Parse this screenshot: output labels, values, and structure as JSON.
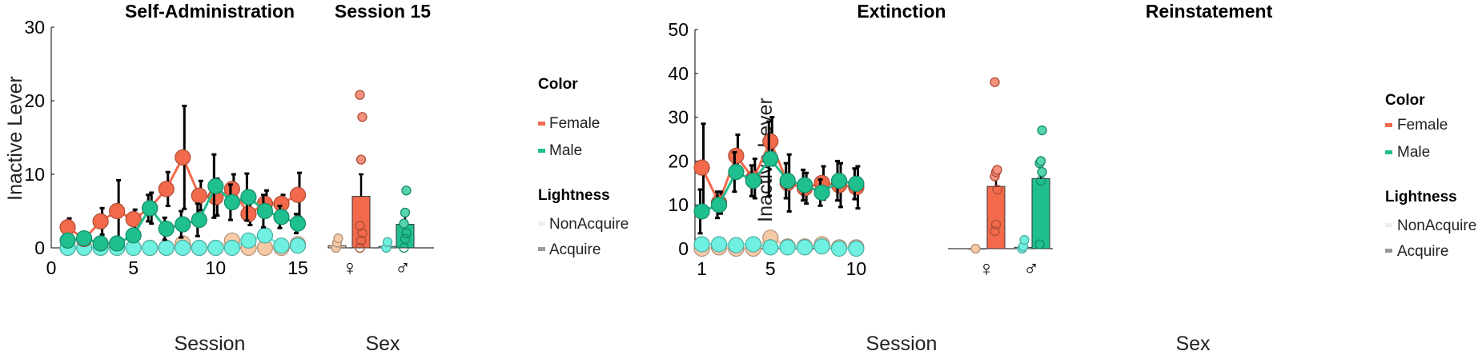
{
  "colors": {
    "female": "#f26a4b",
    "male": "#1fbf8f",
    "female_light": "#f6c9a7",
    "male_light": "#6ff0e0",
    "female_bar": "#f5917d",
    "male_bar": "#57d4b0",
    "axis": "#000000",
    "errorbar": "#000000"
  },
  "legends": [
    {
      "color_title": "Color",
      "color_items": [
        "Female",
        "Male"
      ],
      "lightness_title": "Lightness",
      "lightness_items": [
        "NonAcquire",
        "Acquire"
      ]
    },
    {
      "color_title": "Color",
      "color_items": [
        "Female",
        "Male"
      ],
      "lightness_title": "Lightness",
      "lightness_items": [
        "NonAcquire",
        "Acquire"
      ]
    }
  ],
  "chart_data": [
    {
      "type": "line",
      "title": "Self-Administration",
      "xlabel": "Session",
      "ylabel": "Inactive Lever",
      "xlim": [
        0,
        15
      ],
      "ylim": [
        0,
        30
      ],
      "xticks": [
        0,
        5,
        10,
        15
      ],
      "yticks": [
        0,
        10,
        20,
        30
      ],
      "series": [
        {
          "group": "Female Acquire",
          "color": "female",
          "marker": "large",
          "x": [
            1,
            2,
            3,
            4,
            5,
            6,
            7,
            8,
            9,
            10,
            11,
            12,
            13,
            14,
            15
          ],
          "y": [
            2.8,
            1.2,
            3.6,
            5.0,
            3.9,
            5.4,
            8.0,
            12.3,
            7.1,
            6.9,
            8.0,
            4.6,
            6.0,
            6.0,
            7.2
          ],
          "err": [
            1.2,
            0.5,
            1.8,
            4.2,
            1.3,
            2.1,
            2.3,
            7.0,
            2.0,
            2.5,
            2.0,
            1.5,
            1.8,
            1.2,
            3.0
          ]
        },
        {
          "group": "Male Acquire",
          "color": "male",
          "marker": "large",
          "x": [
            1,
            2,
            3,
            4,
            5,
            6,
            7,
            8,
            9,
            10,
            11,
            12,
            13,
            14,
            15
          ],
          "y": [
            1.0,
            1.3,
            0.6,
            0.6,
            1.7,
            5.4,
            2.6,
            3.2,
            3.8,
            8.4,
            6.2,
            6.9,
            5.0,
            4.2,
            3.3
          ],
          "err": [
            0.5,
            0.5,
            0.4,
            0.4,
            0.7,
            1.8,
            1.5,
            1.8,
            2.2,
            4.3,
            2.4,
            3.2,
            2.2,
            1.5,
            1.3
          ]
        },
        {
          "group": "Female NonAcquire",
          "color": "female_light",
          "marker": "large",
          "x": [
            1,
            2,
            3,
            4,
            5,
            6,
            7,
            8,
            9,
            10,
            11,
            12,
            13,
            14,
            15
          ],
          "y": [
            0.0,
            0.0,
            0.0,
            0.0,
            0.0,
            0.0,
            0.0,
            0.6,
            0.0,
            0.0,
            1.0,
            0.0,
            0.0,
            0.0,
            0.5
          ],
          "err": []
        },
        {
          "group": "Male NonAcquire",
          "color": "male_light",
          "marker": "large",
          "x": [
            1,
            2,
            3,
            4,
            5,
            6,
            7,
            8,
            9,
            10,
            11,
            12,
            13,
            14,
            15
          ],
          "y": [
            0.0,
            0.0,
            0.0,
            0.0,
            0.0,
            0.0,
            0.0,
            0.0,
            0.0,
            0.0,
            0.0,
            1.0,
            1.7,
            0.3,
            0.3
          ],
          "err": []
        }
      ]
    },
    {
      "type": "bar",
      "title": "Session 15",
      "xlabel": "Sex",
      "categories": [
        "♀",
        "♂"
      ],
      "ylim": [
        0,
        30
      ],
      "bars": [
        {
          "group": "Female NonAcquire",
          "position": 1,
          "color": "female_light",
          "value": 0.3,
          "err": 0,
          "points": [
            0.0,
            0.7,
            1.3
          ]
        },
        {
          "group": "Female Acquire",
          "position": 2,
          "color": "female",
          "value": 7.0,
          "err": 3.0,
          "points": [
            0.0,
            1.0,
            2.0,
            3.0,
            12.0,
            17.8,
            20.8
          ]
        },
        {
          "group": "Male NonAcquire",
          "position": 3,
          "color": "male_light",
          "value": 0.2,
          "err": 0,
          "points": [
            0.0,
            0.8
          ]
        },
        {
          "group": "Male Acquire",
          "position": 4,
          "color": "male",
          "value": 3.2,
          "err": 1.3,
          "points": [
            0.0,
            1.2,
            2.0,
            3.3,
            4.8,
            7.8
          ]
        }
      ]
    },
    {
      "type": "line",
      "title": "Extinction",
      "xlabel": "Session",
      "ylabel": "Inactive Lever",
      "xlim": [
        0.6,
        10.4
      ],
      "ylim": [
        0,
        50
      ],
      "xticks": [
        1,
        5,
        10
      ],
      "yticks": [
        0,
        10,
        20,
        30,
        40,
        50
      ],
      "series": [
        {
          "group": "Female Acquire",
          "color": "female",
          "marker": "large",
          "x": [
            1,
            2,
            3,
            4,
            5,
            6,
            7,
            8,
            9,
            10
          ],
          "y": [
            18.5,
            10.5,
            21.2,
            16.0,
            24.5,
            15.0,
            13.8,
            15.0,
            14.5,
            14.0
          ],
          "err": [
            10.0,
            2.5,
            4.8,
            4.5,
            5.5,
            6.5,
            3.5,
            3.8,
            5.0,
            4.8
          ]
        },
        {
          "group": "Male Acquire",
          "color": "male",
          "marker": "large",
          "x": [
            1,
            2,
            3,
            4,
            5,
            6,
            7,
            8,
            9,
            10
          ],
          "y": [
            8.5,
            10.0,
            17.5,
            15.5,
            20.5,
            15.5,
            14.5,
            12.8,
            15.5,
            14.8
          ],
          "err": [
            5.0,
            3.0,
            4.5,
            3.5,
            8.5,
            4.0,
            3.5,
            3.0,
            4.5,
            3.5
          ]
        },
        {
          "group": "Female NonAcquire",
          "color": "female_light",
          "marker": "large",
          "x": [
            1,
            2,
            3,
            4,
            5,
            6,
            7,
            8,
            9,
            10
          ],
          "y": [
            0.0,
            0.3,
            0.0,
            0.0,
            2.5,
            0.5,
            0.5,
            1.0,
            0.3,
            0.3
          ],
          "err": []
        },
        {
          "group": "Male NonAcquire",
          "color": "male_light",
          "marker": "large",
          "x": [
            1,
            2,
            3,
            4,
            5,
            6,
            7,
            8,
            9,
            10
          ],
          "y": [
            1.0,
            1.0,
            0.8,
            1.0,
            0.3,
            0.3,
            0.3,
            0.5,
            0.0,
            0.0
          ],
          "err": []
        }
      ]
    },
    {
      "type": "bar",
      "title": "Reinstatement",
      "xlabel": "Sex",
      "categories": [
        "♀",
        "♂"
      ],
      "ylim": [
        0,
        50
      ],
      "bars": [
        {
          "group": "Female NonAcquire",
          "position": 1,
          "color": "female_light",
          "value": 0.0,
          "err": 0,
          "points": [
            0.0
          ]
        },
        {
          "group": "Female Acquire",
          "position": 2,
          "color": "female",
          "value": 14.2,
          "err": 3.8,
          "points": [
            4.0,
            5.5,
            13.5,
            16.5,
            17.5,
            18.0,
            38.0
          ]
        },
        {
          "group": "Male NonAcquire",
          "position": 3,
          "color": "male_light",
          "value": 0.3,
          "err": 0,
          "points": [
            0.0,
            0.5,
            2.0
          ]
        },
        {
          "group": "Male Acquire",
          "position": 4,
          "color": "male",
          "value": 16.0,
          "err": 3.5,
          "points": [
            1.0,
            15.5,
            17.5,
            19.5,
            20.0,
            27.0
          ]
        }
      ]
    }
  ]
}
